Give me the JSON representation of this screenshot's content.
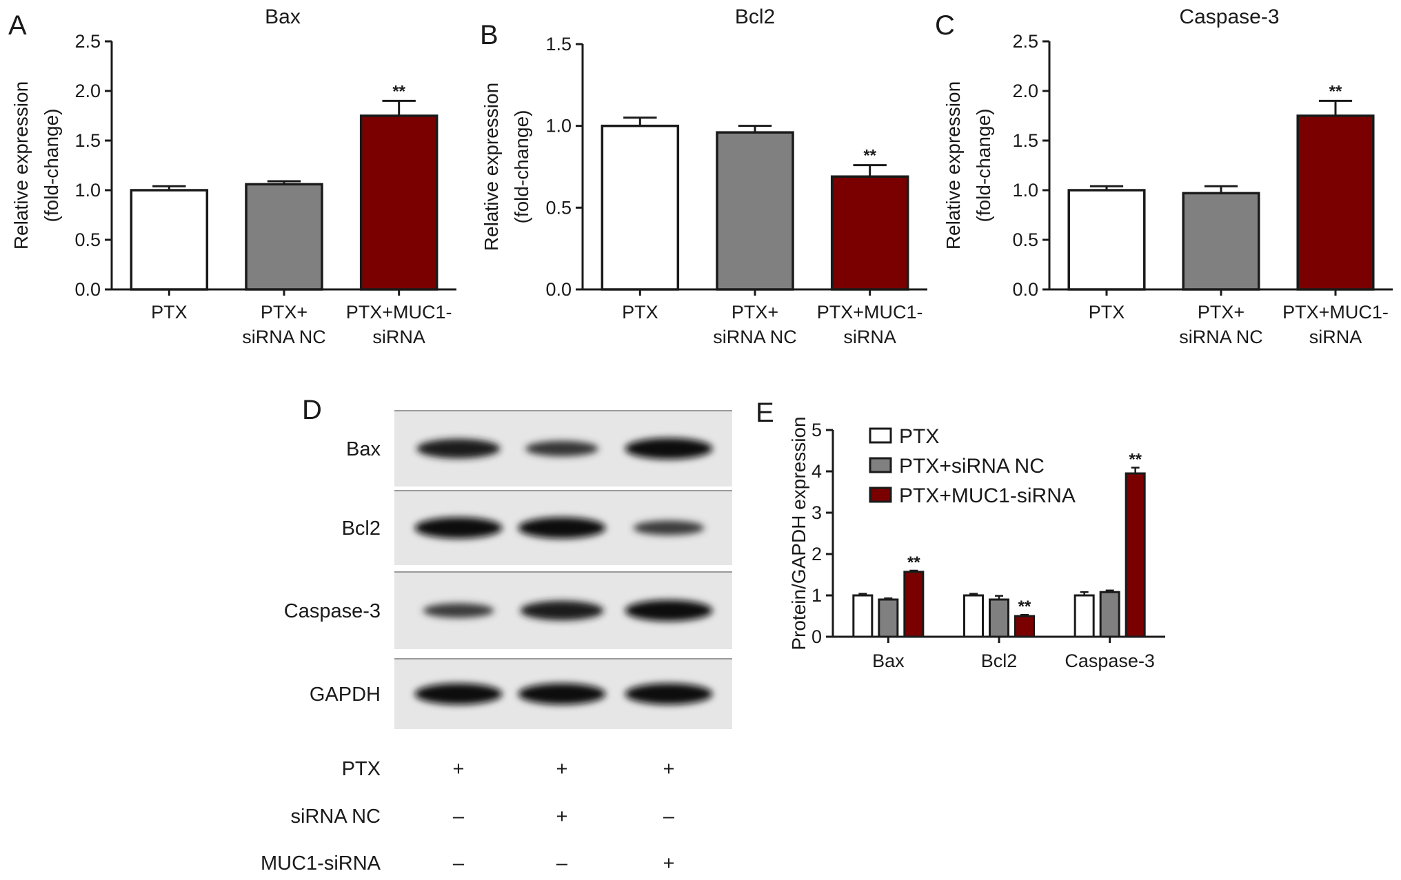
{
  "colors": {
    "PTX": "#ffffff",
    "PTX+siRNA NC": "#808080",
    "PTX+MUC1-siRNA": "#7a0000",
    "axis": "#1a1a1a"
  },
  "chart_data": [
    {
      "panel": "A",
      "type": "bar",
      "title": "Bax",
      "ylabel": [
        "Relative expression",
        "(fold-change)"
      ],
      "ylim": [
        0,
        2.5
      ],
      "yticks": [
        "0.0",
        "0.5",
        "1.0",
        "1.5",
        "2.0",
        "2.5"
      ],
      "categories": [
        [
          "PTX"
        ],
        [
          "PTX+",
          "siRNA NC"
        ],
        [
          "PTX+MUC1-",
          "siRNA"
        ]
      ],
      "series_keys": [
        "PTX",
        "PTX+siRNA NC",
        "PTX+MUC1-siRNA"
      ],
      "values": [
        1.0,
        1.06,
        1.75
      ],
      "errors": [
        0.04,
        0.03,
        0.15
      ],
      "significance": [
        "",
        "",
        "**"
      ]
    },
    {
      "panel": "B",
      "type": "bar",
      "title": "Bcl2",
      "ylabel": [
        "Relative expression",
        "(fold-change)"
      ],
      "ylim": [
        0,
        1.5
      ],
      "yticks": [
        "0.0",
        "0.5",
        "1.0",
        "1.5"
      ],
      "categories": [
        [
          "PTX"
        ],
        [
          "PTX+",
          "siRNA NC"
        ],
        [
          "PTX+MUC1-",
          "siRNA"
        ]
      ],
      "series_keys": [
        "PTX",
        "PTX+siRNA NC",
        "PTX+MUC1-siRNA"
      ],
      "values": [
        1.0,
        0.96,
        0.69
      ],
      "errors": [
        0.05,
        0.04,
        0.07
      ],
      "significance": [
        "",
        "",
        "**"
      ]
    },
    {
      "panel": "C",
      "type": "bar",
      "title": "Caspase-3",
      "ylabel": [
        "Relative expression",
        "(fold-change)"
      ],
      "ylim": [
        0,
        2.5
      ],
      "yticks": [
        "0.0",
        "0.5",
        "1.0",
        "1.5",
        "2.0",
        "2.5"
      ],
      "categories": [
        [
          "PTX"
        ],
        [
          "PTX+",
          "siRNA NC"
        ],
        [
          "PTX+MUC1-",
          "siRNA"
        ]
      ],
      "series_keys": [
        "PTX",
        "PTX+siRNA NC",
        "PTX+MUC1-siRNA"
      ],
      "values": [
        1.0,
        0.97,
        1.75
      ],
      "errors": [
        0.04,
        0.07,
        0.15
      ],
      "significance": [
        "",
        "",
        "**"
      ]
    },
    {
      "panel": "E",
      "type": "bar",
      "title": "",
      "ylabel": [
        "Protein/GAPDH expression"
      ],
      "ylim": [
        0,
        5
      ],
      "yticks": [
        "0",
        "1",
        "2",
        "3",
        "4",
        "5"
      ],
      "categories": [
        "Bax",
        "Bcl2",
        "Caspase-3"
      ],
      "legend": {
        "position": "top-left",
        "entries": [
          "PTX",
          "PTX+siRNA NC",
          "PTX+MUC1-siRNA"
        ]
      },
      "series": [
        {
          "name": "PTX",
          "values": [
            1.0,
            1.0,
            1.0
          ],
          "errors": [
            0.04,
            0.04,
            0.08
          ],
          "significance": [
            "",
            "",
            ""
          ]
        },
        {
          "name": "PTX+siRNA NC",
          "values": [
            0.9,
            0.9,
            1.08
          ],
          "errors": [
            0.03,
            0.09,
            0.04
          ],
          "significance": [
            "",
            "",
            ""
          ]
        },
        {
          "name": "PTX+MUC1-siRNA",
          "values": [
            1.57,
            0.5,
            3.95
          ],
          "errors": [
            0.03,
            0.03,
            0.14
          ],
          "significance": [
            "**",
            "**",
            "**"
          ]
        }
      ]
    }
  ],
  "blot": {
    "panel": "D",
    "bands": [
      {
        "label": "Bax",
        "intensity": [
          0.85,
          0.6,
          0.95
        ]
      },
      {
        "label": "Bcl2",
        "intensity": [
          0.95,
          0.95,
          0.55
        ]
      },
      {
        "label": "Caspase-3",
        "intensity": [
          0.55,
          0.85,
          0.95
        ]
      },
      {
        "label": "GAPDH",
        "intensity": [
          0.95,
          0.95,
          0.95
        ]
      }
    ],
    "conditions": [
      {
        "label": "PTX",
        "marks": [
          "+",
          "+",
          "+"
        ]
      },
      {
        "label": "siRNA NC",
        "marks": [
          "–",
          "+",
          "–"
        ]
      },
      {
        "label": "MUC1-siRNA",
        "marks": [
          "–",
          "–",
          "+"
        ]
      }
    ]
  }
}
